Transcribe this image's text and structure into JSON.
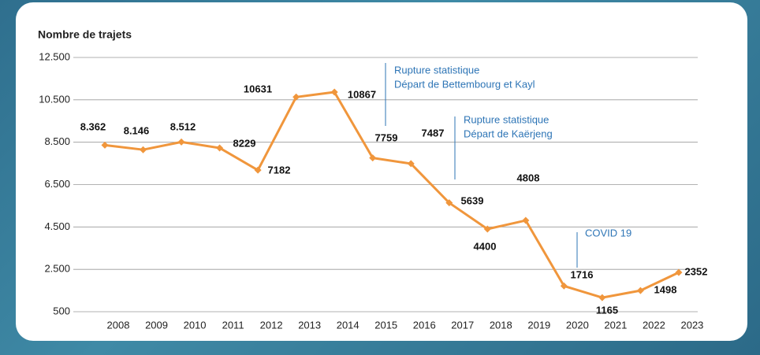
{
  "chart_data": {
    "type": "line",
    "title": "Nombre de trajets",
    "categories": [
      "2008",
      "2009",
      "2010",
      "2011",
      "2012",
      "2013",
      "2014",
      "2015",
      "2016",
      "2017",
      "2018",
      "2019",
      "2020",
      "2021",
      "2022",
      "2023"
    ],
    "series": [
      {
        "name": "Nombre de trajets",
        "color": "#f0963c",
        "values": [
          8362,
          8146,
          8512,
          8229,
          7182,
          10631,
          10867,
          7759,
          7487,
          5639,
          4400,
          4808,
          1716,
          1165,
          1498,
          2352
        ],
        "value_labels": [
          "8.362",
          "8.146",
          "8.512",
          "8229",
          "7182",
          "10631",
          "10867",
          "7759",
          "7487",
          "5639",
          "4400",
          "4808",
          "1716",
          "1165",
          "1498",
          "2352"
        ]
      }
    ],
    "ylim": [
      500,
      12500
    ],
    "yticks": [
      500,
      {
        "value": 2500,
        "label": "2.500"
      },
      {
        "value": 4500,
        "label": "4.500"
      },
      {
        "value": 6500,
        "label": "6.500"
      },
      {
        "value": 8500,
        "label": "8.500"
      },
      {
        "value": 10500,
        "label": "10.500"
      },
      {
        "value": 12500,
        "label": "12.500"
      }
    ],
    "grid": true,
    "annotations": [
      {
        "lines": [
          "Rupture statistique",
          "Départ de Bettembourg et Kayl"
        ]
      },
      {
        "lines": [
          "Rupture statistique",
          "Départ de Kaërjeng"
        ]
      },
      {
        "lines": [
          "COVID 19"
        ]
      }
    ]
  }
}
